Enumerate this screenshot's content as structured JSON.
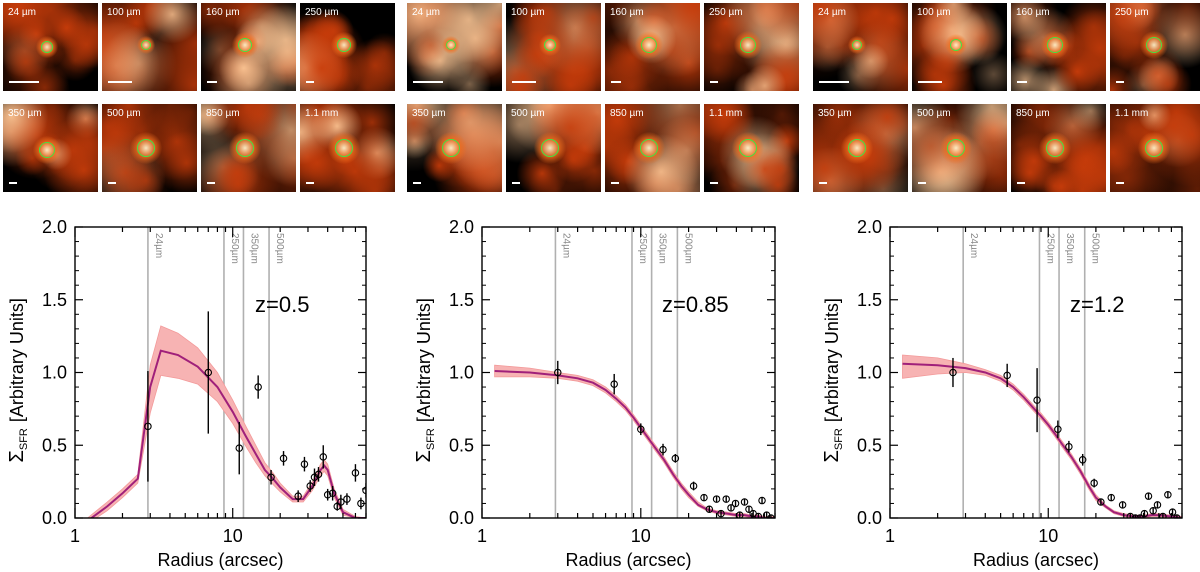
{
  "colors": {
    "model_line": "#a0207a",
    "band_fill": "#f7b3b3",
    "band_stroke": "#f39a9a",
    "ring": "#44e244",
    "vline": "#b0b0b0",
    "points": "#000000",
    "stamp_bg": "#000000"
  },
  "stamps": {
    "rows": [
      [
        "24 µm",
        "100 µm",
        "160 µm",
        "250 µm"
      ],
      [
        "350 µm",
        "500 µm",
        "850 µm",
        "1.1 mm"
      ]
    ]
  },
  "chart_data": [
    {
      "type": "scatter",
      "title": "",
      "annotation": "z=0.5",
      "xlabel": "Radius (arcsec)",
      "ylabel_symbol": "Σ",
      "ylabel_sub": "SFR",
      "ylabel_units": "[Arbitrary Units]",
      "xscale": "log",
      "xlim": [
        1,
        70
      ],
      "ylim": [
        0,
        2.0
      ],
      "xticks": [
        1,
        10
      ],
      "xtick_labels": [
        "1",
        "10"
      ],
      "yticks": [
        0.0,
        0.5,
        1.0,
        1.5,
        2.0
      ],
      "ytick_labels": [
        "0.0",
        "0.5",
        "1.0",
        "1.5",
        "2.0"
      ],
      "vlines": [
        {
          "x": 2.9,
          "label": "24µm"
        },
        {
          "x": 8.8,
          "label": "250µm"
        },
        {
          "x": 11.7,
          "label": "350µm"
        },
        {
          "x": 17.0,
          "label": "500µm"
        }
      ],
      "model": {
        "x": [
          1.2,
          1.6,
          2.0,
          2.5,
          3.0,
          3.5,
          4.5,
          6.0,
          8.0,
          10.0,
          12.0,
          14.0,
          16.0,
          18.0,
          20.0,
          24.0,
          28.0,
          32.0,
          36.0,
          38.0,
          40.0,
          44.0,
          50.0,
          60.0,
          70.0
        ],
        "y": [
          -0.02,
          0.08,
          0.17,
          0.27,
          0.9,
          1.15,
          1.12,
          1.04,
          0.9,
          0.73,
          0.57,
          0.44,
          0.33,
          0.27,
          0.21,
          0.13,
          0.13,
          0.22,
          0.33,
          0.36,
          0.33,
          0.17,
          0.04,
          0.0,
          0.0
        ]
      },
      "band": {
        "lower": [
          -0.04,
          0.05,
          0.14,
          0.24,
          0.72,
          0.98,
          0.96,
          0.92,
          0.8,
          0.65,
          0.5,
          0.38,
          0.29,
          0.23,
          0.18,
          0.11,
          0.11,
          0.19,
          0.29,
          0.32,
          0.29,
          0.14,
          0.02,
          0.0,
          0.0
        ],
        "upper": [
          0.0,
          0.11,
          0.2,
          0.3,
          1.05,
          1.32,
          1.27,
          1.17,
          1.0,
          0.81,
          0.64,
          0.5,
          0.38,
          0.31,
          0.24,
          0.15,
          0.15,
          0.25,
          0.37,
          0.4,
          0.37,
          0.2,
          0.06,
          0.01,
          0.0
        ]
      },
      "points": {
        "x": [
          2.9,
          7.0,
          11.0,
          14.5,
          17.5,
          21.0,
          26.0,
          28.5,
          31.0,
          33.0,
          35.0,
          37.5,
          40.0,
          43.0,
          46.0,
          48.5,
          53.0,
          60.0,
          65.0,
          70.0
        ],
        "y": [
          0.63,
          1.0,
          0.48,
          0.9,
          0.28,
          0.41,
          0.15,
          0.37,
          0.22,
          0.28,
          0.3,
          0.42,
          0.16,
          0.17,
          0.08,
          0.11,
          0.13,
          0.31,
          0.1,
          0.19
        ],
        "err": [
          0.38,
          0.42,
          0.18,
          0.08,
          0.05,
          0.05,
          0.04,
          0.05,
          0.04,
          0.06,
          0.05,
          0.08,
          0.04,
          0.05,
          0.03,
          0.05,
          0.04,
          0.06,
          0.04,
          0.05
        ]
      }
    },
    {
      "type": "scatter",
      "title": "",
      "annotation": "z=0.85",
      "xlabel": "Radius (arcsec)",
      "ylabel_symbol": "Σ",
      "ylabel_sub": "SFR",
      "ylabel_units": "[Arbitrary Units]",
      "xscale": "log",
      "xlim": [
        1,
        70
      ],
      "ylim": [
        0,
        2.0
      ],
      "xticks": [
        1,
        10
      ],
      "xtick_labels": [
        "1",
        "10"
      ],
      "yticks": [
        0.0,
        0.5,
        1.0,
        1.5,
        2.0
      ],
      "ytick_labels": [
        "0.0",
        "0.5",
        "1.0",
        "1.5",
        "2.0"
      ],
      "vlines": [
        {
          "x": 2.9,
          "label": "24µm"
        },
        {
          "x": 8.8,
          "label": "250µm"
        },
        {
          "x": 11.7,
          "label": "350µm"
        },
        {
          "x": 17.0,
          "label": "500µm"
        }
      ],
      "model": {
        "x": [
          1.2,
          2.0,
          3.0,
          4.0,
          5.0,
          6.0,
          7.0,
          8.0,
          9.0,
          10.0,
          12.0,
          14.0,
          16.0,
          18.0,
          20.0,
          23.0,
          26.0,
          30.0,
          35.0,
          40.0,
          45.0,
          50.0,
          55.0,
          60.0,
          70.0
        ],
        "y": [
          1.01,
          1.0,
          0.98,
          0.96,
          0.93,
          0.88,
          0.82,
          0.76,
          0.69,
          0.62,
          0.5,
          0.4,
          0.3,
          0.22,
          0.16,
          0.09,
          0.06,
          0.04,
          0.03,
          0.02,
          0.02,
          0.01,
          0.01,
          0.0,
          0.0
        ]
      },
      "band": {
        "lower": [
          0.97,
          0.97,
          0.96,
          0.94,
          0.91,
          0.86,
          0.8,
          0.74,
          0.67,
          0.6,
          0.48,
          0.38,
          0.28,
          0.2,
          0.14,
          0.08,
          0.05,
          0.03,
          0.02,
          0.01,
          0.01,
          0.0,
          0.0,
          0.0,
          0.0
        ],
        "upper": [
          1.05,
          1.03,
          1.0,
          0.98,
          0.95,
          0.9,
          0.84,
          0.78,
          0.71,
          0.64,
          0.52,
          0.42,
          0.32,
          0.24,
          0.18,
          0.11,
          0.07,
          0.05,
          0.04,
          0.03,
          0.03,
          0.02,
          0.02,
          0.01,
          0.01
        ]
      },
      "points": {
        "x": [
          3.0,
          6.8,
          10.0,
          13.8,
          16.5,
          21.5,
          25.0,
          27.0,
          30.0,
          32.0,
          34.5,
          37.0,
          39.5,
          42.0,
          45.0,
          48.0,
          51.0,
          55.0,
          58.0,
          62.0,
          66.0
        ],
        "y": [
          1.0,
          0.92,
          0.61,
          0.47,
          0.41,
          0.22,
          0.14,
          0.06,
          0.13,
          0.03,
          0.13,
          0.07,
          0.1,
          0.02,
          0.11,
          0.06,
          0.03,
          0.01,
          0.12,
          0.02,
          0.0
        ],
        "err": [
          0.08,
          0.07,
          0.04,
          0.04,
          0.03,
          0.03,
          0.02,
          0.02,
          0.02,
          0.02,
          0.02,
          0.02,
          0.02,
          0.02,
          0.02,
          0.02,
          0.02,
          0.02,
          0.02,
          0.02,
          0.02
        ]
      }
    },
    {
      "type": "scatter",
      "title": "",
      "annotation": "z=1.2",
      "xlabel": "Radius (arcsec)",
      "ylabel_symbol": "Σ",
      "ylabel_sub": "SFR",
      "ylabel_units": "[Arbitrary Units]",
      "xscale": "log",
      "xlim": [
        1,
        70
      ],
      "ylim": [
        0,
        2.0
      ],
      "xticks": [
        1,
        10
      ],
      "xtick_labels": [
        "1",
        "10"
      ],
      "yticks": [
        0.0,
        0.5,
        1.0,
        1.5,
        2.0
      ],
      "ytick_labels": [
        "0.0",
        "0.5",
        "1.0",
        "1.5",
        "2.0"
      ],
      "vlines": [
        {
          "x": 2.9,
          "label": "24µm"
        },
        {
          "x": 8.8,
          "label": "250µm"
        },
        {
          "x": 11.7,
          "label": "350µm"
        },
        {
          "x": 17.0,
          "label": "500µm"
        }
      ],
      "model": {
        "x": [
          1.2,
          2.0,
          3.0,
          4.0,
          5.0,
          6.0,
          7.0,
          8.0,
          9.0,
          10.0,
          11.0,
          12.0,
          14.0,
          16.0,
          18.0,
          20.0,
          23.0,
          26.0,
          30.0,
          35.0,
          40.0,
          45.0,
          50.0,
          60.0,
          70.0
        ],
        "y": [
          1.06,
          1.05,
          1.03,
          1.0,
          0.96,
          0.9,
          0.83,
          0.76,
          0.7,
          0.64,
          0.58,
          0.52,
          0.42,
          0.32,
          0.22,
          0.14,
          0.08,
          0.04,
          0.02,
          0.01,
          0.01,
          0.02,
          0.02,
          0.01,
          0.0
        ]
      },
      "band": {
        "lower": [
          0.96,
          0.99,
          1.0,
          0.98,
          0.94,
          0.88,
          0.81,
          0.74,
          0.68,
          0.62,
          0.56,
          0.5,
          0.4,
          0.3,
          0.2,
          0.12,
          0.07,
          0.03,
          0.01,
          0.0,
          0.0,
          0.01,
          0.01,
          0.0,
          0.0
        ],
        "upper": [
          1.12,
          1.1,
          1.06,
          1.02,
          0.98,
          0.92,
          0.85,
          0.78,
          0.72,
          0.66,
          0.6,
          0.54,
          0.44,
          0.34,
          0.24,
          0.16,
          0.09,
          0.05,
          0.03,
          0.02,
          0.02,
          0.03,
          0.03,
          0.02,
          0.01
        ]
      },
      "points": {
        "x": [
          2.5,
          5.5,
          8.5,
          11.5,
          13.5,
          16.5,
          19.5,
          21.5,
          25.0,
          29.5,
          33.0,
          35.5,
          38.0,
          40.5,
          43.0,
          46.0,
          49.0,
          53.0,
          57.0,
          61.0,
          65.0
        ],
        "y": [
          1.0,
          0.98,
          0.81,
          0.61,
          0.49,
          0.4,
          0.24,
          0.11,
          0.14,
          0.09,
          0.01,
          0.0,
          0.0,
          0.03,
          0.15,
          0.05,
          0.09,
          0.01,
          0.16,
          0.04,
          0.0
        ],
        "err": [
          0.1,
          0.08,
          0.22,
          0.06,
          0.04,
          0.04,
          0.03,
          0.02,
          0.02,
          0.02,
          0.02,
          0.02,
          0.02,
          0.02,
          0.02,
          0.02,
          0.02,
          0.02,
          0.02,
          0.02,
          0.02
        ]
      }
    }
  ]
}
